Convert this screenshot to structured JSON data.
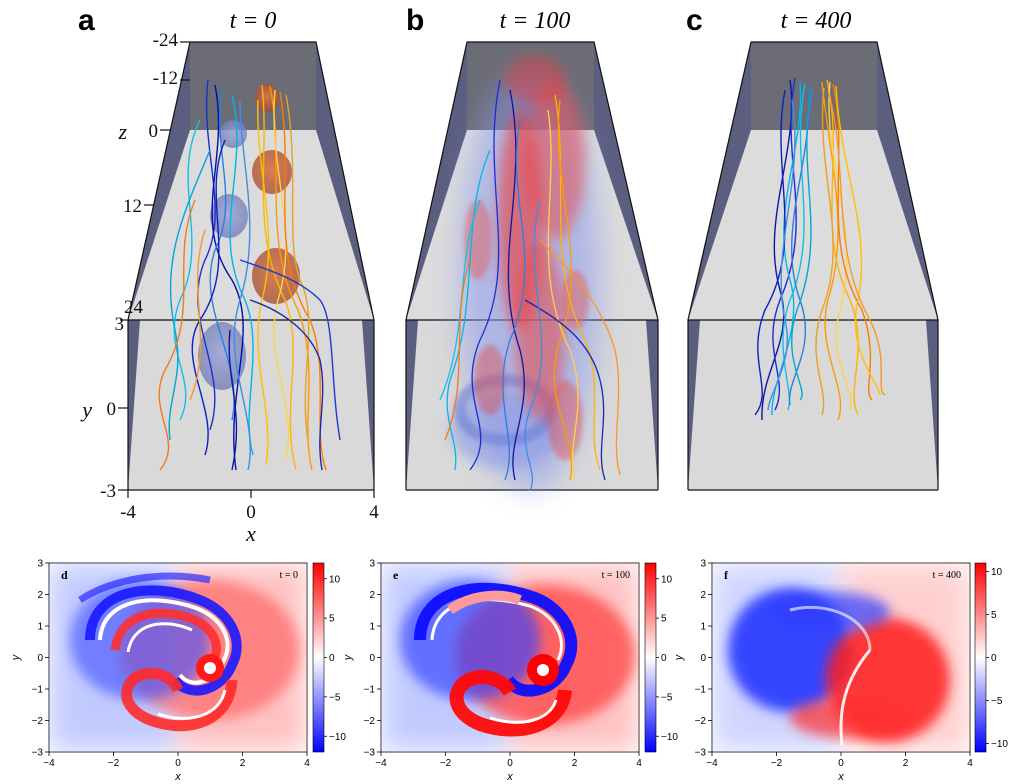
{
  "colors": {
    "frame_wall": "#5b5e7f",
    "frame_floor": "#dcdcdc",
    "frame_back": "#6c6c76",
    "negative": "#0000ff",
    "positive": "#ff0000"
  },
  "top_panels": [
    {
      "letter": "a",
      "time_label": "t = 0"
    },
    {
      "letter": "b",
      "time_label": "t = 100"
    },
    {
      "letter": "c",
      "time_label": "t = 400"
    }
  ],
  "axes3d": {
    "z_label": "z",
    "z_ticks": [
      "-24",
      "-12",
      "0",
      "12",
      "24"
    ],
    "y_label": "y",
    "y_ticks": [
      "3",
      "0",
      "-3"
    ],
    "x_label": "x",
    "x_ticks": [
      "-4",
      "0",
      "4"
    ]
  },
  "chart_data": [
    {
      "type": "heatmap",
      "panel_letter": "d",
      "annotation": "t = 0",
      "xlabel": "x",
      "ylabel": "y",
      "xlim": [
        -4,
        4
      ],
      "ylim": [
        -3,
        3
      ],
      "x_ticks": [
        "−4",
        "−2",
        "0",
        "2",
        "4"
      ],
      "y_ticks": [
        "3",
        "2",
        "1",
        "0",
        "−1",
        "−2",
        "−3"
      ],
      "colorbar_ticks": [
        "10",
        "5",
        "0",
        "−5",
        "−10"
      ],
      "colorbar_range": [
        -12,
        12
      ]
    },
    {
      "type": "heatmap",
      "panel_letter": "e",
      "annotation": "t = 100",
      "xlabel": "x",
      "ylabel": "y",
      "xlim": [
        -4,
        4
      ],
      "ylim": [
        -3,
        3
      ],
      "x_ticks": [
        "−4",
        "−2",
        "0",
        "2",
        "4"
      ],
      "y_ticks": [
        "3",
        "2",
        "1",
        "0",
        "−1",
        "−2",
        "−3"
      ],
      "colorbar_ticks": [
        "10",
        "5",
        "0",
        "−5",
        "−10"
      ],
      "colorbar_range": [
        -12,
        12
      ]
    },
    {
      "type": "heatmap",
      "panel_letter": "f",
      "annotation": "t = 400",
      "xlabel": "x",
      "ylabel": "y",
      "xlim": [
        -4,
        4
      ],
      "ylim": [
        -3,
        3
      ],
      "x_ticks": [
        "−4",
        "−2",
        "0",
        "2",
        "4"
      ],
      "y_ticks": [
        "3",
        "2",
        "1",
        "0",
        "−1",
        "−2",
        "−3"
      ],
      "colorbar_ticks": [
        "10",
        "5",
        "0",
        "−5",
        "−10"
      ],
      "colorbar_range": [
        -11,
        11
      ]
    }
  ]
}
